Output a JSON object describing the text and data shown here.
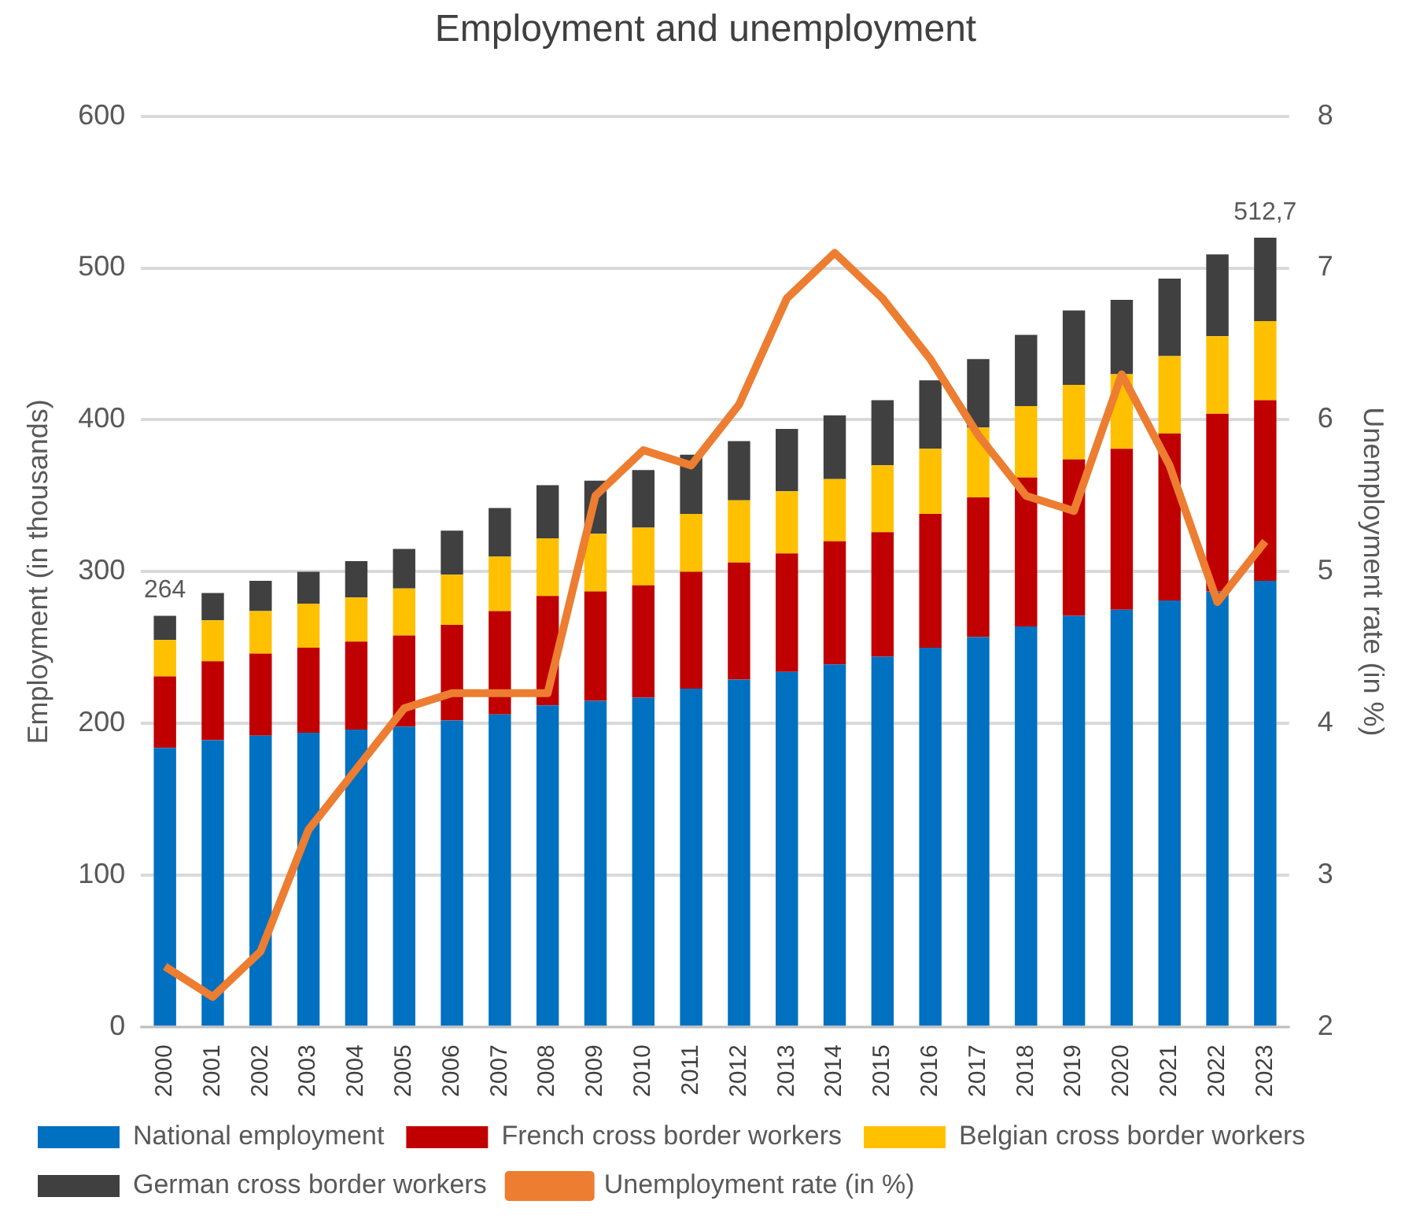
{
  "chart_data": {
    "type": "bar",
    "title": "Employment and unemployment",
    "ylabel": "Employment (in thousands)",
    "y2label": "Unemployment rate (in %)",
    "categories": [
      "2000",
      "2001",
      "2002",
      "2003",
      "2004",
      "2005",
      "2006",
      "2007",
      "2008",
      "2009",
      "2010",
      "2011",
      "2012",
      "2013",
      "2014",
      "2015",
      "2016",
      "2017",
      "2018",
      "2019",
      "2020",
      "2021",
      "2022",
      "2023"
    ],
    "stacked": true,
    "ylim": [
      0,
      600
    ],
    "yticks": [
      0,
      100,
      200,
      300,
      400,
      500,
      600
    ],
    "y2lim": [
      2,
      8
    ],
    "y2ticks": [
      2,
      3,
      4,
      5,
      6,
      7,
      8
    ],
    "grid": "y",
    "legend": "bottom",
    "annotations": [
      {
        "text": "264",
        "x": "2000",
        "y": 271
      },
      {
        "text": "512,7",
        "x": "2023",
        "y": 520
      }
    ],
    "series": [
      {
        "name": "National employment",
        "color": "#0070c0",
        "values": [
          184,
          189,
          192,
          194,
          196,
          198,
          202,
          206,
          212,
          215,
          217,
          223,
          229,
          234,
          239,
          244,
          250,
          257,
          264,
          271,
          275,
          281,
          287,
          294
        ]
      },
      {
        "name": "French cross border workers",
        "color": "#c00000",
        "values": [
          47,
          52,
          54,
          56,
          58,
          60,
          63,
          68,
          72,
          72,
          74,
          77,
          77,
          78,
          81,
          82,
          88,
          92,
          98,
          103,
          106,
          110,
          117,
          119
        ]
      },
      {
        "name": "Belgian cross border workers",
        "color": "#ffc000",
        "values": [
          24,
          27,
          28,
          29,
          29,
          31,
          33,
          36,
          38,
          38,
          38,
          38,
          41,
          41,
          41,
          44,
          43,
          46,
          47,
          49,
          49,
          51,
          51,
          52
        ]
      },
      {
        "name": "German cross border workers",
        "color": "#404040",
        "values": [
          16,
          18,
          20,
          21,
          24,
          26,
          29,
          32,
          35,
          35,
          38,
          39,
          39,
          41,
          42,
          43,
          45,
          45,
          47,
          49,
          49,
          51,
          54,
          55
        ]
      },
      {
        "name": "Unemployment rate (in %)",
        "type": "line",
        "axis": "y2",
        "color": "#ed7d31",
        "values": [
          2.4,
          2.2,
          2.5,
          3.3,
          3.7,
          4.1,
          4.2,
          4.2,
          4.2,
          5.5,
          5.8,
          5.7,
          6.1,
          6.8,
          7.1,
          6.8,
          6.4,
          5.9,
          5.5,
          5.4,
          6.3,
          5.7,
          4.8,
          5.2
        ]
      }
    ]
  }
}
